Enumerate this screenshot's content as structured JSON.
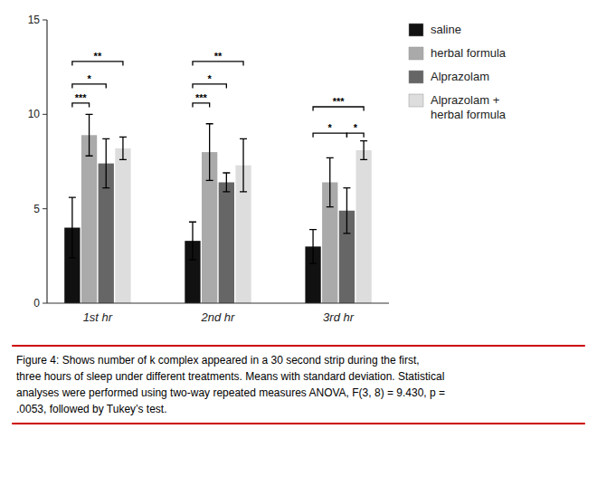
{
  "chart_data": {
    "type": "bar",
    "categories": [
      "1st hr",
      "2nd hr",
      "3rd hr"
    ],
    "series": [
      {
        "name": "saline",
        "color": "#111111",
        "values": [
          4.0,
          3.3,
          3.0
        ],
        "errors": [
          1.6,
          1.0,
          0.9
        ]
      },
      {
        "name": "herbal formula",
        "color": "#aaaaaa",
        "values": [
          8.9,
          8.0,
          6.4
        ],
        "errors": [
          1.1,
          1.5,
          1.3
        ]
      },
      {
        "name": "Alprazolam",
        "color": "#666666",
        "values": [
          7.4,
          6.4,
          4.9
        ],
        "errors": [
          1.3,
          0.5,
          1.2
        ]
      },
      {
        "name": "Alprazolam +\nherbal formula",
        "color": "#dddddd",
        "values": [
          8.2,
          7.3,
          8.1
        ],
        "errors": [
          0.6,
          1.4,
          0.5
        ]
      }
    ],
    "ylim": [
      0,
      15
    ],
    "yticks": [
      0,
      5,
      10,
      15
    ],
    "legend": "right",
    "annotations": [
      {
        "text": "***",
        "category": 0,
        "series": [
          0,
          1
        ],
        "y": 10.6
      },
      {
        "text": "*",
        "category": 0,
        "series": [
          0,
          2
        ],
        "y": 11.6
      },
      {
        "text": "**",
        "category": 0,
        "series": [
          0,
          3
        ],
        "y": 12.8
      },
      {
        "text": "***",
        "category": 1,
        "series": [
          0,
          1
        ],
        "y": 10.6
      },
      {
        "text": "*",
        "category": 1,
        "series": [
          0,
          2
        ],
        "y": 11.6
      },
      {
        "text": "**",
        "category": 1,
        "series": [
          0,
          3
        ],
        "y": 12.8
      },
      {
        "text": "*",
        "category": 2,
        "series": [
          0,
          2
        ],
        "y": 9.0
      },
      {
        "text": "*",
        "category": 2,
        "series": [
          2,
          3
        ],
        "y": 9.0
      },
      {
        "text": "***",
        "category": 2,
        "series": [
          0,
          3
        ],
        "y": 10.4
      }
    ],
    "caption": [
      "Figure 4: Shows number of k complex appeared in a 30 second strip during the first,",
      "three hours of sleep under different treatments. Means with standard deviation. Statistical",
      "analyses were performed using two-way repeated measures ANOVA, F(3, 8) = 9.430, p =",
      ".0053, followed by Tukey’s test."
    ]
  }
}
